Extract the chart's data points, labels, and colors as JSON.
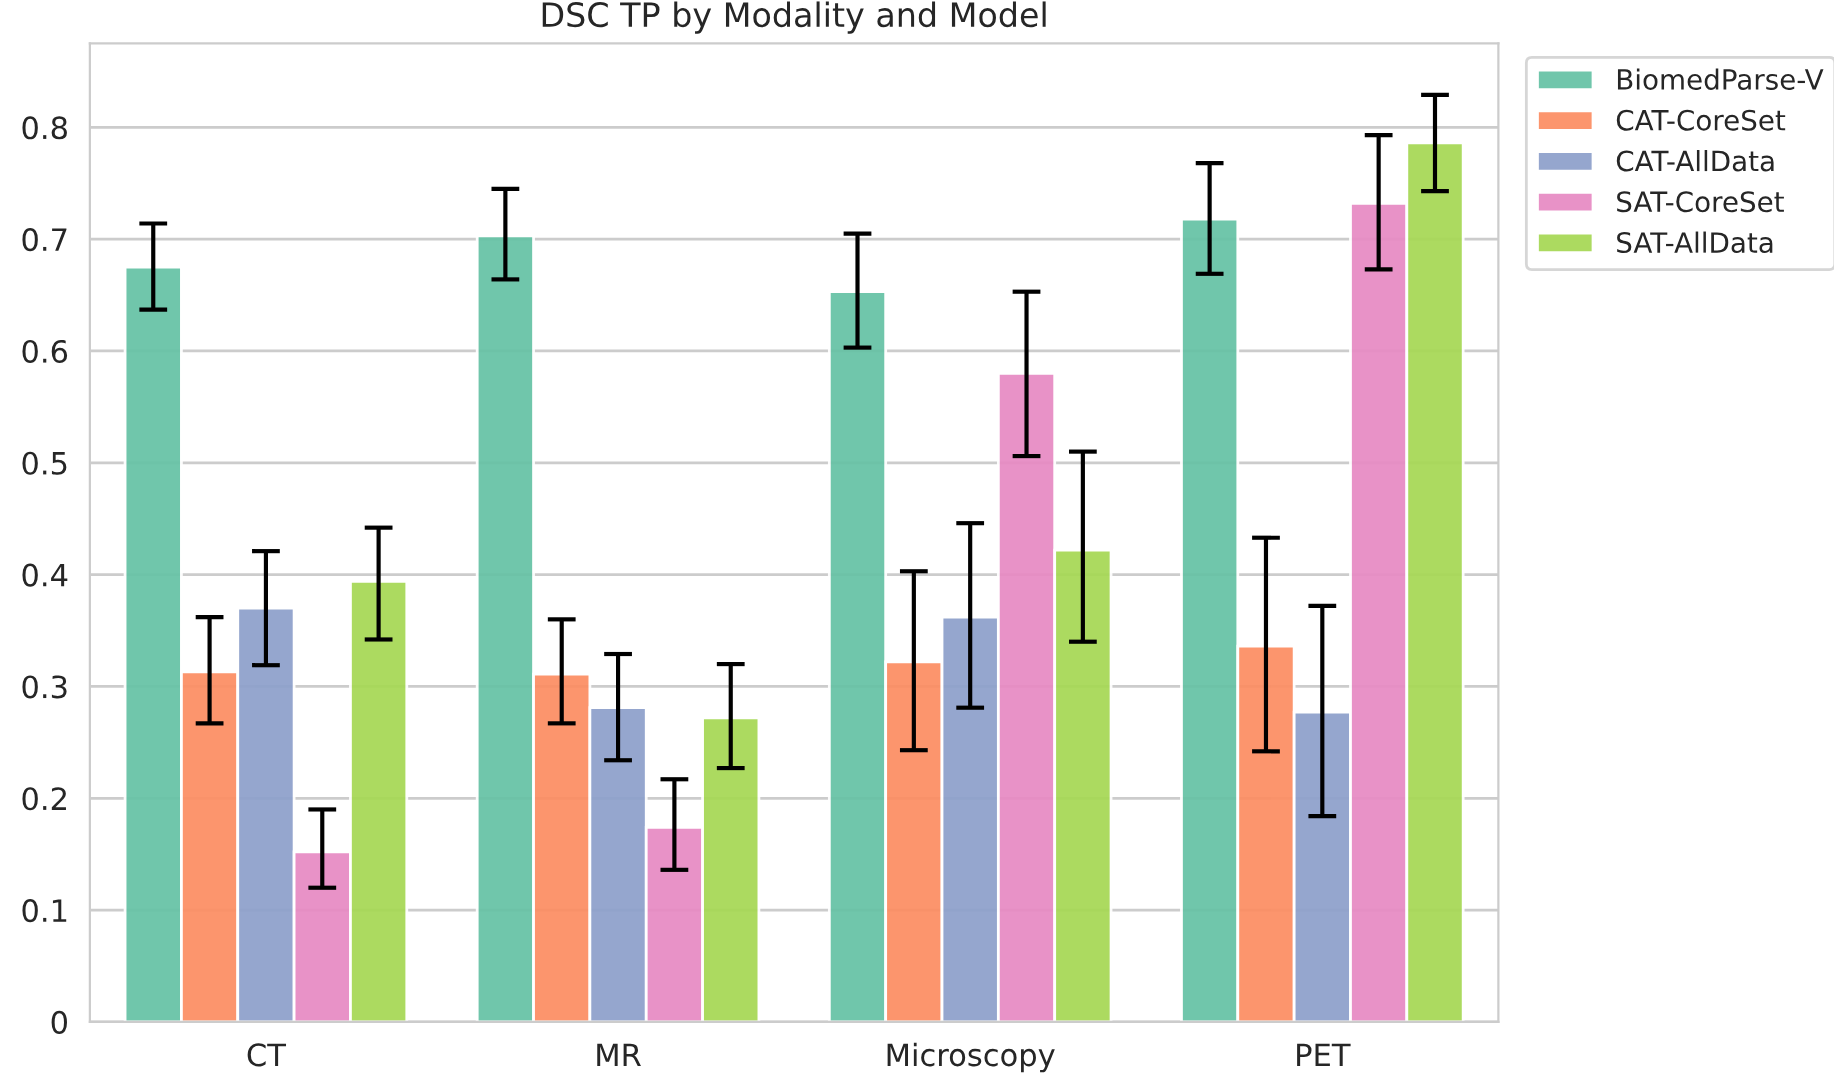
{
  "chart_data": {
    "type": "bar",
    "title": "DSC TP by Modality and Model",
    "categories": [
      "CT",
      "MR",
      "Microscopy",
      "PET"
    ],
    "series": [
      {
        "name": "BiomedParse-V",
        "color": "#66c2a5",
        "values": [
          0.675,
          0.703,
          0.653,
          0.718
        ],
        "errors": [
          [
            0.637,
            0.714
          ],
          [
            0.664,
            0.745
          ],
          [
            0.603,
            0.705
          ],
          [
            0.669,
            0.768
          ]
        ]
      },
      {
        "name": "CAT-CoreSet",
        "color": "#fc8d62",
        "values": [
          0.313,
          0.311,
          0.322,
          0.336
        ],
        "errors": [
          [
            0.267,
            0.362
          ],
          [
            0.267,
            0.36
          ],
          [
            0.243,
            0.403
          ],
          [
            0.242,
            0.433
          ]
        ]
      },
      {
        "name": "CAT-AllData",
        "color": "#8da0cb",
        "values": [
          0.37,
          0.281,
          0.362,
          0.277
        ],
        "errors": [
          [
            0.319,
            0.421
          ],
          [
            0.234,
            0.329
          ],
          [
            0.281,
            0.446
          ],
          [
            0.184,
            0.372
          ]
        ]
      },
      {
        "name": "SAT-CoreSet",
        "color": "#e78ac3",
        "values": [
          0.152,
          0.174,
          0.58,
          0.732
        ],
        "errors": [
          [
            0.12,
            0.19
          ],
          [
            0.136,
            0.217
          ],
          [
            0.506,
            0.653
          ],
          [
            0.673,
            0.793
          ]
        ]
      },
      {
        "name": "SAT-AllData",
        "color": "#a6d854",
        "values": [
          0.394,
          0.272,
          0.422,
          0.786
        ],
        "errors": [
          [
            0.342,
            0.442
          ],
          [
            0.227,
            0.32
          ],
          [
            0.34,
            0.51
          ],
          [
            0.743,
            0.829
          ]
        ]
      }
    ],
    "ylim": [
      0,
      0.875
    ],
    "yticks": [
      0,
      {
        "value": 0.1,
        "label": "0.1"
      },
      {
        "value": 0.2,
        "label": "0.2"
      },
      {
        "value": 0.3,
        "label": "0.3"
      },
      {
        "value": 0.4,
        "label": "0.4"
      },
      {
        "value": 0.5,
        "label": "0.5"
      },
      {
        "value": 0.6,
        "label": "0.6"
      },
      {
        "value": 0.7,
        "label": "0.7"
      },
      {
        "value": 0.8,
        "label": "0.8"
      }
    ],
    "grid": "y",
    "legend": "right"
  }
}
